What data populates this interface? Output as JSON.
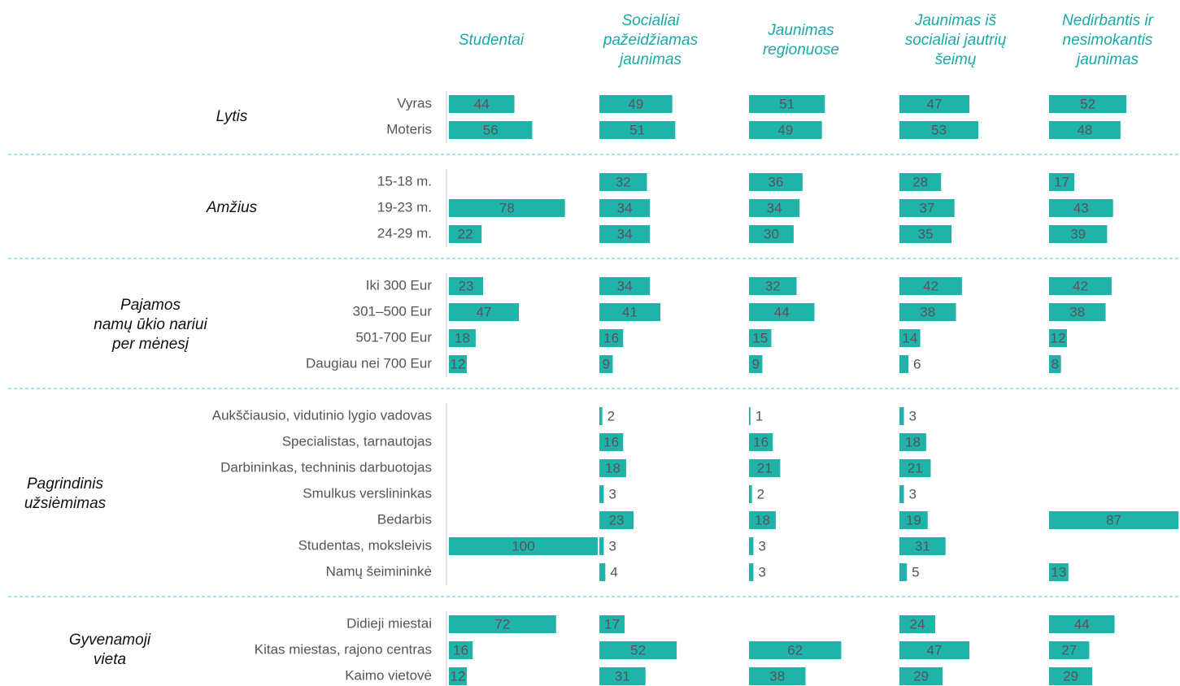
{
  "chart_data": {
    "type": "bar",
    "color": "#1fb3aa",
    "xlim": [
      0,
      100
    ],
    "columns": [
      {
        "lines": [
          "Studentai"
        ]
      },
      {
        "lines": [
          "Socialiai",
          "pažeidžiamas",
          "jaunimas"
        ]
      },
      {
        "lines": [
          "Jaunimas",
          "regionuose"
        ]
      },
      {
        "lines": [
          "Jaunimas iš",
          "socialiai jautrių",
          "šeimų"
        ]
      },
      {
        "lines": [
          "Nedirbantis ir",
          "nesimokantis",
          "jaunimas"
        ]
      }
    ],
    "groups": [
      {
        "lines": [
          "Lytis"
        ],
        "rows": [
          {
            "label": "Vyras",
            "values": [
              44,
              49,
              51,
              47,
              52
            ]
          },
          {
            "label": "Moteris",
            "values": [
              56,
              51,
              49,
              53,
              48
            ]
          }
        ]
      },
      {
        "lines": [
          "Amžius"
        ],
        "rows": [
          {
            "label": "15-18 m.",
            "values": [
              null,
              32,
              36,
              28,
              17
            ]
          },
          {
            "label": "19-23 m.",
            "values": [
              78,
              34,
              34,
              37,
              43
            ]
          },
          {
            "label": "24-29 m.",
            "values": [
              22,
              34,
              30,
              35,
              39
            ]
          }
        ]
      },
      {
        "lines": [
          "Pajamos",
          "namų ūkio nariui",
          "per mėnesį"
        ],
        "rows": [
          {
            "label": "Iki 300 Eur",
            "values": [
              23,
              34,
              32,
              42,
              42
            ]
          },
          {
            "label": "301–500 Eur",
            "values": [
              47,
              41,
              44,
              38,
              38
            ]
          },
          {
            "label": "501-700 Eur",
            "values": [
              18,
              16,
              15,
              14,
              12
            ]
          },
          {
            "label": "Daugiau nei 700 Eur",
            "values": [
              12,
              9,
              9,
              6,
              8
            ]
          }
        ]
      },
      {
        "lines": [
          "Pagrindinis",
          "užsiėmimas"
        ],
        "rows": [
          {
            "label": "Aukščiausio, vidutinio lygio vadovas",
            "values": [
              null,
              2,
              1,
              3,
              null
            ]
          },
          {
            "label": "Specialistas, tarnautojas",
            "values": [
              null,
              16,
              16,
              18,
              null
            ]
          },
          {
            "label": "Darbininkas, techninis darbuotojas",
            "values": [
              null,
              18,
              21,
              21,
              null
            ]
          },
          {
            "label": "Smulkus verslininkas",
            "values": [
              null,
              3,
              2,
              3,
              null
            ]
          },
          {
            "label": "Bedarbis",
            "values": [
              null,
              23,
              18,
              19,
              87
            ]
          },
          {
            "label": "Studentas, moksleivis",
            "values": [
              100,
              3,
              3,
              31,
              null
            ]
          },
          {
            "label": "Namų šeimininkė",
            "values": [
              null,
              4,
              3,
              5,
              13
            ]
          }
        ]
      },
      {
        "lines": [
          "Gyvenamoji",
          "vieta"
        ],
        "rows": [
          {
            "label": "Didieji miestai",
            "values": [
              72,
              17,
              null,
              24,
              44
            ]
          },
          {
            "label": "Kitas miestas, rajono centras",
            "values": [
              16,
              52,
              62,
              47,
              27
            ]
          },
          {
            "label": "Kaimo vietovė",
            "values": [
              12,
              31,
              38,
              29,
              29
            ]
          }
        ]
      }
    ]
  }
}
